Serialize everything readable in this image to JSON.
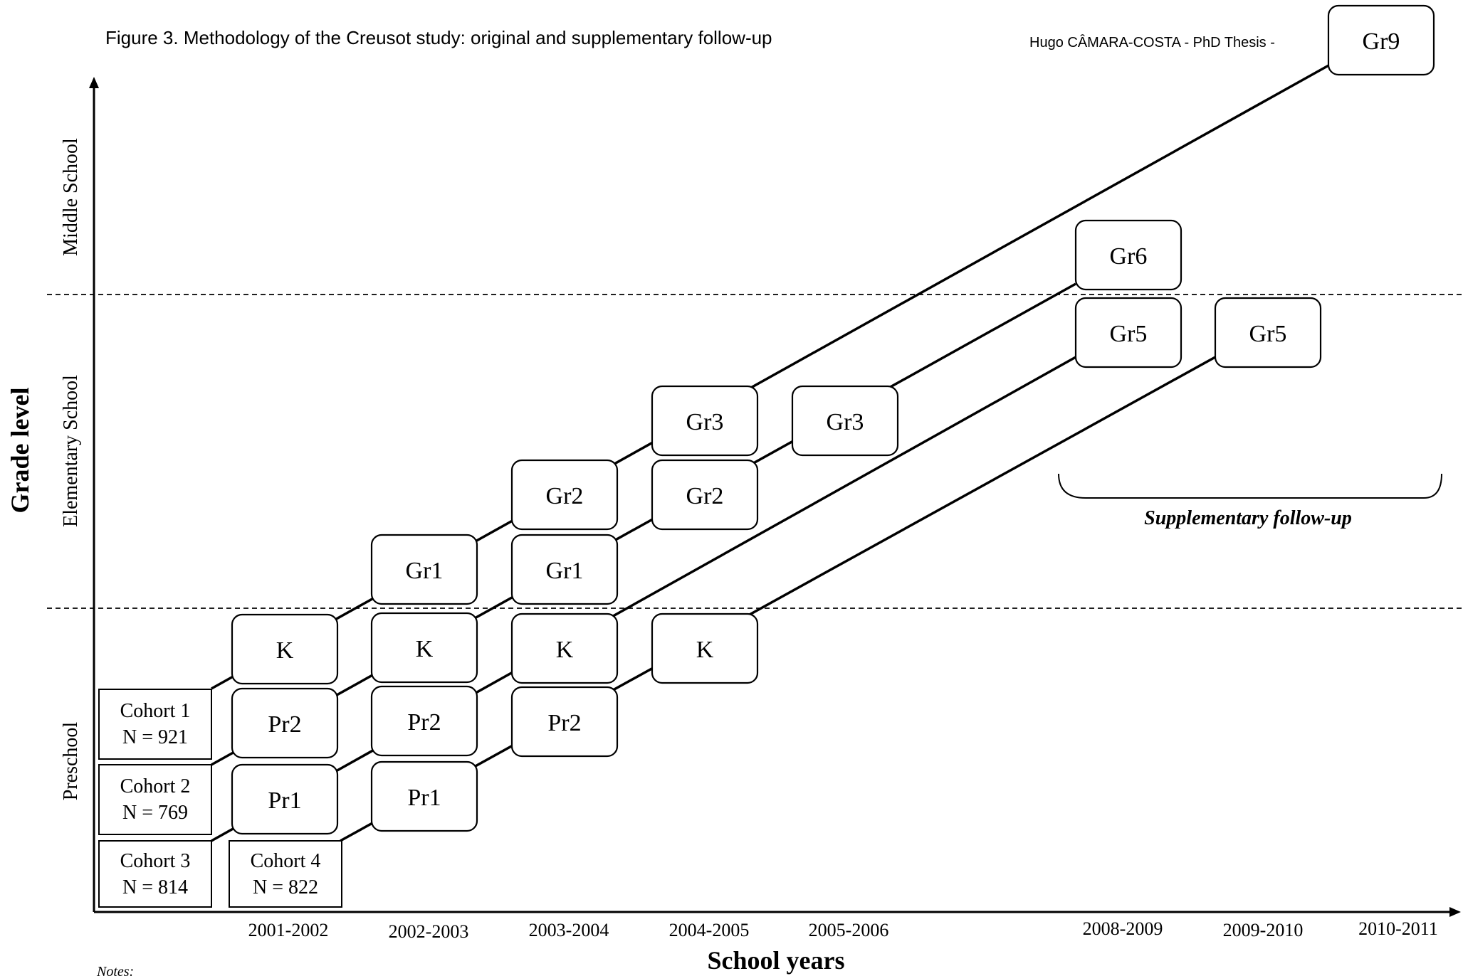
{
  "header": {
    "caption": "Figure 3. Methodology of the Creusot study: original and supplementary follow-up",
    "author": "Hugo CÂMARA-COSTA - PhD Thesis -"
  },
  "axes": {
    "y_title": "Grade level",
    "x_title": "School years",
    "zones": [
      "Middle School",
      "Elementary School",
      "Preschool"
    ],
    "years": [
      "2001-2002",
      "2002-2003",
      "2003-2004",
      "2004-2005",
      "2005-2006",
      "2008-2009",
      "2009-2010",
      "2010-2011"
    ]
  },
  "cohorts": [
    {
      "label": "Cohort 1",
      "n": "N = 921"
    },
    {
      "label": "Cohort 2",
      "n": "N = 769"
    },
    {
      "label": "Cohort 3",
      "n": "N = 814"
    },
    {
      "label": "Cohort 4",
      "n": "N = 822"
    }
  ],
  "grades": {
    "pr1": "Pr1",
    "pr2": "Pr2",
    "k": "K",
    "gr1": "Gr1",
    "gr2": "Gr2",
    "gr3": "Gr3",
    "gr5": "Gr5",
    "gr6": "Gr6",
    "gr9": "Gr9"
  },
  "supplementary_label": "Supplementary follow-up",
  "notes_label": "Notes:"
}
